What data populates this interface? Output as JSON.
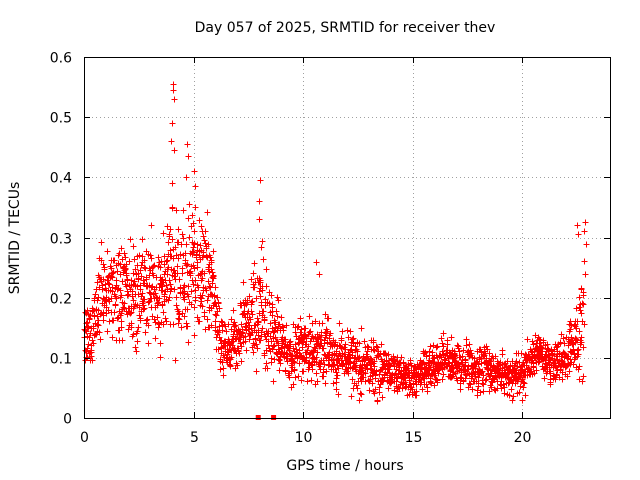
{
  "chart_data": {
    "type": "scatter",
    "title": "Day 057 of 2025, SRMTID for receiver thev",
    "xlabel": "GPS time / hours",
    "ylabel": "SRMTID / TECUs",
    "xlim": [
      0,
      24
    ],
    "ylim": [
      0,
      0.6
    ],
    "xticks": [
      0,
      5,
      10,
      15,
      20
    ],
    "xtick_labels": [
      "0",
      "5",
      "10",
      "15",
      "20"
    ],
    "yticks": [
      0,
      0.1,
      0.2,
      0.3,
      0.4,
      0.5,
      0.6
    ],
    "ytick_labels": [
      "0",
      "0.1",
      "0.2",
      "0.3",
      "0.4",
      "0.5",
      "0.6"
    ],
    "grid": true,
    "marker": "plus",
    "color": "#ff0000",
    "series": [
      {
        "name": "SRMTID",
        "x_start": 0.0,
        "x_step": 0.025,
        "envelope_hours": [
          0,
          0.3,
          0.6,
          1.0,
          1.5,
          2.0,
          2.5,
          3.0,
          3.5,
          4.0,
          4.5,
          5.0,
          5.5,
          5.9,
          6.2,
          6.6,
          7.0,
          7.5,
          8.0,
          8.5,
          9.0,
          9.5,
          10.0,
          10.5,
          11.0,
          11.5,
          12.0,
          12.5,
          13.0,
          13.5,
          14.0,
          14.5,
          15.0,
          15.5,
          16.0,
          16.5,
          17.0,
          17.5,
          18.0,
          18.5,
          19.0,
          19.5,
          20.0,
          20.5,
          21.0,
          21.5,
          22.0,
          22.5,
          22.8
        ],
        "envelope_center": [
          0.15,
          0.12,
          0.2,
          0.2,
          0.22,
          0.2,
          0.2,
          0.22,
          0.2,
          0.25,
          0.22,
          0.25,
          0.24,
          0.2,
          0.12,
          0.12,
          0.14,
          0.17,
          0.18,
          0.15,
          0.12,
          0.1,
          0.12,
          0.11,
          0.12,
          0.1,
          0.1,
          0.09,
          0.09,
          0.08,
          0.08,
          0.07,
          0.07,
          0.08,
          0.09,
          0.1,
          0.09,
          0.09,
          0.08,
          0.08,
          0.08,
          0.07,
          0.07,
          0.11,
          0.1,
          0.09,
          0.11,
          0.13,
          0.18
        ],
        "envelope_spread": [
          0.05,
          0.05,
          0.07,
          0.06,
          0.07,
          0.07,
          0.07,
          0.08,
          0.08,
          0.1,
          0.09,
          0.09,
          0.08,
          0.07,
          0.04,
          0.04,
          0.05,
          0.05,
          0.08,
          0.07,
          0.04,
          0.04,
          0.05,
          0.05,
          0.05,
          0.04,
          0.04,
          0.04,
          0.04,
          0.04,
          0.03,
          0.03,
          0.03,
          0.03,
          0.03,
          0.03,
          0.03,
          0.03,
          0.03,
          0.03,
          0.03,
          0.03,
          0.03,
          0.03,
          0.03,
          0.03,
          0.03,
          0.06,
          0.1
        ],
        "peaks": [
          {
            "x": 4.05,
            "y": 0.555
          },
          {
            "x": 4.07,
            "y": 0.545
          },
          {
            "x": 4.1,
            "y": 0.53
          },
          {
            "x": 4.03,
            "y": 0.49
          },
          {
            "x": 3.98,
            "y": 0.46
          },
          {
            "x": 4.12,
            "y": 0.445
          },
          {
            "x": 4.0,
            "y": 0.39
          },
          {
            "x": 4.7,
            "y": 0.455
          },
          {
            "x": 4.75,
            "y": 0.435
          },
          {
            "x": 4.65,
            "y": 0.4
          },
          {
            "x": 5.0,
            "y": 0.41
          },
          {
            "x": 5.08,
            "y": 0.385
          },
          {
            "x": 8.05,
            "y": 0.395
          },
          {
            "x": 8.0,
            "y": 0.36
          },
          {
            "x": 7.98,
            "y": 0.33
          },
          {
            "x": 8.1,
            "y": 0.295
          },
          {
            "x": 10.6,
            "y": 0.26
          },
          {
            "x": 10.7,
            "y": 0.24
          },
          {
            "x": 22.5,
            "y": 0.32
          },
          {
            "x": 22.55,
            "y": 0.305
          },
          {
            "x": 22.85,
            "y": 0.325
          },
          {
            "x": 22.8,
            "y": 0.31
          },
          {
            "x": 22.9,
            "y": 0.29
          },
          {
            "x": 22.85,
            "y": 0.24
          }
        ],
        "flag_markers_hours": [
          7.95,
          8.65
        ],
        "flag_value": 0
      }
    ]
  }
}
